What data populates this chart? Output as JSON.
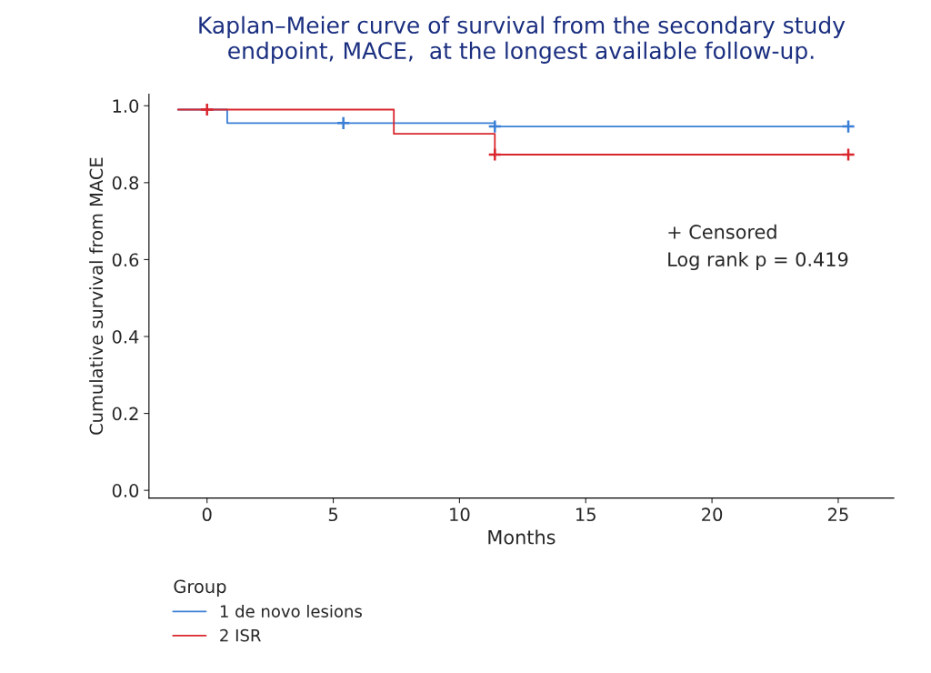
{
  "chart_data": {
    "type": "step",
    "title": "Kaplan–Meier curve of survival from the secondary study\nendpoint, MACE,  at the longest available follow-up.",
    "xlabel": "Months",
    "ylabel": "Cumulative survival from MACE",
    "legend_title": "Group",
    "legend": "bottom left",
    "grid": false,
    "xlim": [
      -2.3,
      27.2
    ],
    "xticks": [
      0,
      5,
      10,
      15,
      20,
      25
    ],
    "ylim": [
      -0.02,
      1.03
    ],
    "yticks": [
      {
        "value": 0,
        "label": "0.0"
      },
      {
        "value": 0.2,
        "label": "0.2"
      },
      {
        "value": 0.4,
        "label": "0.4"
      },
      {
        "value": 0.6,
        "label": "0.6"
      },
      {
        "value": 0.8,
        "label": "0.8"
      },
      {
        "value": 1,
        "label": "1.0"
      }
    ],
    "annotations": [
      "+ Censored",
      "Log rank p = 0.419"
    ],
    "series": [
      {
        "name": "1 de novo lesions",
        "color": "#3a7fd5",
        "x": [
          -1.15,
          0.8,
          11.4,
          25.4
        ],
        "values": [
          0.99,
          0.955,
          0.946,
          0.946
        ]
      },
      {
        "name": "2 ISR",
        "color": "#d9262c",
        "x": [
          -1.15,
          7.4,
          11.4,
          25.4
        ],
        "values": [
          0.99,
          0.927,
          0.873,
          0.873
        ]
      },
      {
        "type": "scatter",
        "marker": "cross",
        "color": "#3a7fd5",
        "x": [
          5.4,
          11.4,
          25.4
        ],
        "values": [
          0.955,
          0.946,
          0.946
        ]
      },
      {
        "type": "scatter",
        "marker": "cross",
        "color": "#d9262c",
        "x": [
          0,
          11.4,
          25.4
        ],
        "values": [
          0.99,
          0.873,
          0.873
        ]
      }
    ]
  }
}
